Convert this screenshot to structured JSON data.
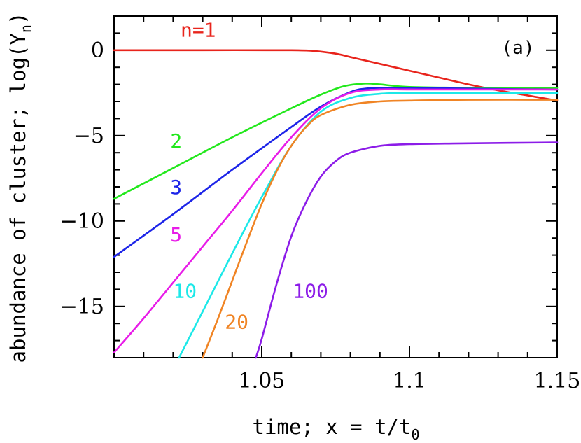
{
  "chart_data": {
    "type": "line",
    "panel_label": "(a)",
    "xlabel": {
      "prefix": "time; x = t/t",
      "subscript": "0"
    },
    "ylabel": {
      "prefix": "abundance of cluster; log(Y",
      "subscript": "n",
      "suffix": ")"
    },
    "xlim": [
      1.0,
      1.15
    ],
    "ylim": [
      -18,
      2
    ],
    "xticks": [
      1.05,
      1.1,
      1.15
    ],
    "xtick_labels": [
      "1.05",
      "1.1",
      "1.15"
    ],
    "yticks": [
      0,
      -5,
      -10,
      -15
    ],
    "ytick_labels": [
      "0",
      "−5",
      "−10",
      "−15"
    ],
    "grid": false,
    "legend": "inline labels",
    "series": [
      {
        "name": "n=1",
        "color": "#e8241c",
        "x": [
          1.0,
          1.03,
          1.06,
          1.068,
          1.075,
          1.08,
          1.09,
          1.1,
          1.11,
          1.12,
          1.13,
          1.14,
          1.15
        ],
        "y": [
          0,
          0,
          0,
          -0.05,
          -0.2,
          -0.4,
          -0.8,
          -1.2,
          -1.6,
          -2.0,
          -2.35,
          -2.65,
          -2.95
        ]
      },
      {
        "name": "2",
        "color": "#22e81c",
        "x": [
          1.0,
          1.02,
          1.04,
          1.06,
          1.07,
          1.078,
          1.085,
          1.09,
          1.1,
          1.12,
          1.15
        ],
        "y": [
          -8.7,
          -6.9,
          -5.1,
          -3.4,
          -2.6,
          -2.1,
          -1.95,
          -2.0,
          -2.15,
          -2.2,
          -2.2
        ]
      },
      {
        "name": "3",
        "color": "#1c24e8",
        "x": [
          1.0,
          1.02,
          1.04,
          1.06,
          1.07,
          1.08,
          1.085,
          1.09,
          1.1,
          1.12,
          1.15
        ],
        "y": [
          -12.1,
          -9.6,
          -7.0,
          -4.5,
          -3.3,
          -2.45,
          -2.25,
          -2.2,
          -2.2,
          -2.25,
          -2.3
        ]
      },
      {
        "name": "5",
        "color": "#e81ce8",
        "x": [
          1.0,
          1.01,
          1.02,
          1.03,
          1.04,
          1.05,
          1.06,
          1.07,
          1.08,
          1.09,
          1.1,
          1.12,
          1.15
        ],
        "y": [
          -17.7,
          -15.7,
          -13.6,
          -11.5,
          -9.4,
          -7.2,
          -5.1,
          -3.4,
          -2.5,
          -2.3,
          -2.3,
          -2.3,
          -2.3
        ]
      },
      {
        "name": "10",
        "color": "#1ce8e8",
        "x": [
          1.022,
          1.03,
          1.04,
          1.05,
          1.06,
          1.07,
          1.08,
          1.09,
          1.1,
          1.12,
          1.15
        ],
        "y": [
          -18,
          -15.3,
          -11.9,
          -8.6,
          -5.6,
          -3.6,
          -2.8,
          -2.55,
          -2.5,
          -2.5,
          -2.5
        ]
      },
      {
        "name": "20",
        "color": "#f08424",
        "x": [
          1.03,
          1.035,
          1.04,
          1.045,
          1.05,
          1.055,
          1.06,
          1.065,
          1.07,
          1.08,
          1.09,
          1.1,
          1.12,
          1.15
        ],
        "y": [
          -18,
          -15.8,
          -13.5,
          -11.2,
          -9.0,
          -7.1,
          -5.6,
          -4.5,
          -3.8,
          -3.2,
          -3.0,
          -2.95,
          -2.9,
          -2.9
        ]
      },
      {
        "name": "100",
        "color": "#8c1ce8",
        "x": [
          1.048,
          1.05,
          1.055,
          1.06,
          1.065,
          1.07,
          1.075,
          1.08,
          1.09,
          1.1,
          1.12,
          1.15
        ],
        "y": [
          -18,
          -16.9,
          -13.7,
          -10.9,
          -8.9,
          -7.4,
          -6.5,
          -6.0,
          -5.6,
          -5.5,
          -5.45,
          -5.4
        ]
      }
    ],
    "annotations": [
      {
        "text": "n=1",
        "color": "#e8241c",
        "x": 1.0285,
        "y": 0.8
      },
      {
        "text": "2",
        "color": "#22e81c",
        "x": 1.021,
        "y": -5.7
      },
      {
        "text": "3",
        "color": "#1c24e8",
        "x": 1.021,
        "y": -8.4
      },
      {
        "text": "5",
        "color": "#e81ce8",
        "x": 1.021,
        "y": -11.2
      },
      {
        "text": "10",
        "color": "#1ce8e8",
        "x": 1.024,
        "y": -14.5
      },
      {
        "text": "20",
        "color": "#f08424",
        "x": 1.0415,
        "y": -16.3
      },
      {
        "text": "100",
        "color": "#8c1ce8",
        "x": 1.0665,
        "y": -14.5
      }
    ]
  }
}
